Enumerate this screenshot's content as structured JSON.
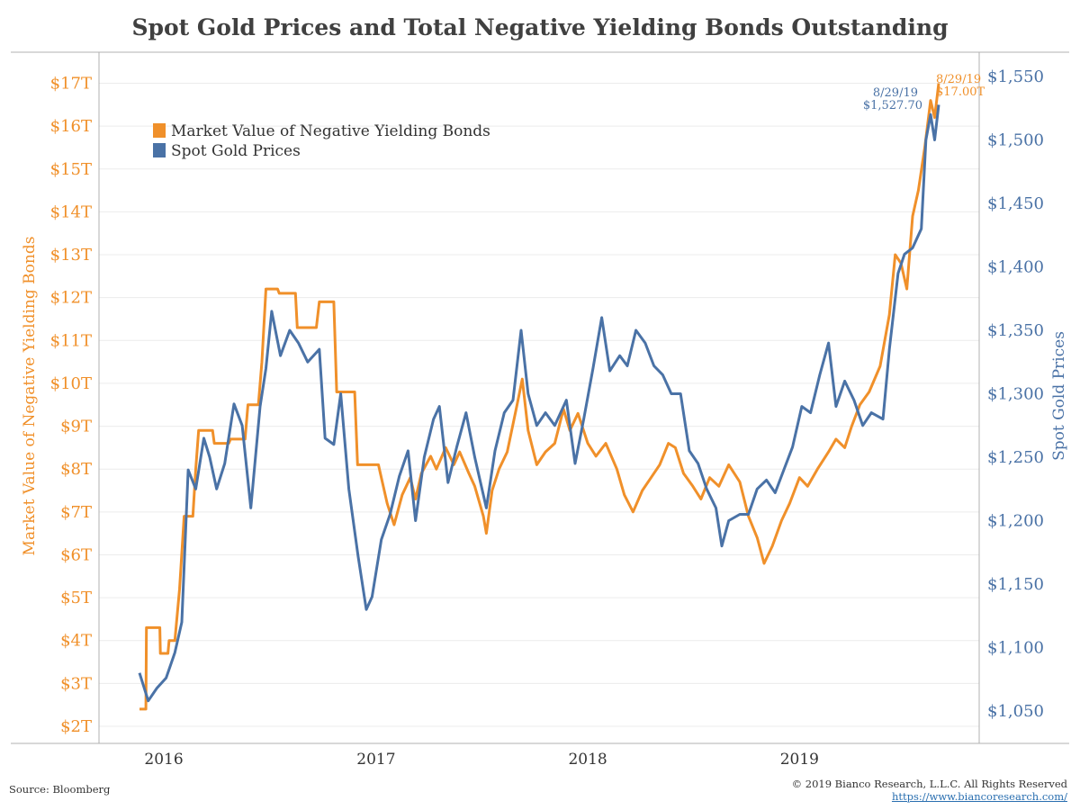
{
  "title": "Spot Gold Prices and Total Negative Yielding Bonds Outstanding",
  "footer": {
    "source": "Source: Bloomberg",
    "copyright": "© 2019 Bianco Research, L.L.C. All Rights Reserved",
    "url": "https://www.biancoresearch.com/"
  },
  "colors": {
    "bonds": "#f0902a",
    "gold": "#4a72a6",
    "axis": "#b0b0b0",
    "grid": "#ececec"
  },
  "chart_data": {
    "type": "line",
    "x_axis": {
      "ticks": [
        "2016",
        "2017",
        "2018",
        "2019"
      ],
      "range": [
        "2015-11-20",
        "2019-08-29"
      ]
    },
    "left_axis": {
      "label": "Market Value of Negative Yielding Bonds",
      "range": [
        2,
        17
      ],
      "ticks": [
        "$2T",
        "$3T",
        "$4T",
        "$5T",
        "$6T",
        "$7T",
        "$8T",
        "$9T",
        "$10T",
        "$11T",
        "$12T",
        "$13T",
        "$14T",
        "$15T",
        "$16T",
        "$17T"
      ],
      "color": "#f0902a"
    },
    "right_axis": {
      "label": "Spot Gold Prices",
      "range": [
        1050,
        1550
      ],
      "ticks": [
        "$1,050",
        "$1,100",
        "$1,150",
        "$1,200",
        "$1,250",
        "$1,300",
        "$1,350",
        "$1,400",
        "$1,450",
        "$1,500",
        "$1,550"
      ],
      "color": "#4a72a6"
    },
    "legend": {
      "placement": "top-left",
      "entries": [
        "Market Value of Negative Yielding Bonds",
        "Spot Gold Prices"
      ]
    },
    "series": [
      {
        "name": "Market Value of Negative Yielding Bonds",
        "axis": "left",
        "points": [
          [
            "2015-11-20",
            2.4
          ],
          [
            "2015-12-01",
            2.4
          ],
          [
            "2015-12-02",
            4.3
          ],
          [
            "2015-12-25",
            4.3
          ],
          [
            "2015-12-26",
            3.7
          ],
          [
            "2016-01-08",
            3.7
          ],
          [
            "2016-01-10",
            4.0
          ],
          [
            "2016-01-20",
            4.0
          ],
          [
            "2016-01-28",
            5.2
          ],
          [
            "2016-02-05",
            6.9
          ],
          [
            "2016-02-20",
            6.9
          ],
          [
            "2016-02-25",
            8.0
          ],
          [
            "2016-03-01",
            8.9
          ],
          [
            "2016-03-25",
            8.9
          ],
          [
            "2016-03-28",
            8.6
          ],
          [
            "2016-04-22",
            8.6
          ],
          [
            "2016-04-25",
            8.7
          ],
          [
            "2016-05-20",
            8.7
          ],
          [
            "2016-05-25",
            9.5
          ],
          [
            "2016-06-12",
            9.5
          ],
          [
            "2016-06-18",
            10.5
          ],
          [
            "2016-06-25",
            12.2
          ],
          [
            "2016-07-15",
            12.2
          ],
          [
            "2016-07-18",
            12.1
          ],
          [
            "2016-08-15",
            12.1
          ],
          [
            "2016-08-18",
            11.3
          ],
          [
            "2016-09-20",
            11.3
          ],
          [
            "2016-09-25",
            11.9
          ],
          [
            "2016-10-20",
            11.9
          ],
          [
            "2016-10-25",
            9.8
          ],
          [
            "2016-11-25",
            9.8
          ],
          [
            "2016-11-30",
            8.1
          ],
          [
            "2017-01-05",
            8.1
          ],
          [
            "2017-01-10",
            7.8
          ],
          [
            "2017-01-20",
            7.2
          ],
          [
            "2017-02-01",
            6.7
          ],
          [
            "2017-02-15",
            7.4
          ],
          [
            "2017-03-01",
            7.8
          ],
          [
            "2017-03-10",
            7.3
          ],
          [
            "2017-03-20",
            7.9
          ],
          [
            "2017-04-05",
            8.3
          ],
          [
            "2017-04-15",
            8.0
          ],
          [
            "2017-05-01",
            8.5
          ],
          [
            "2017-05-15",
            8.1
          ],
          [
            "2017-05-25",
            8.4
          ],
          [
            "2017-06-10",
            7.9
          ],
          [
            "2017-06-20",
            7.6
          ],
          [
            "2017-07-05",
            6.9
          ],
          [
            "2017-07-10",
            6.5
          ],
          [
            "2017-07-20",
            7.5
          ],
          [
            "2017-08-01",
            8.0
          ],
          [
            "2017-08-15",
            8.4
          ],
          [
            "2017-09-01",
            9.5
          ],
          [
            "2017-09-10",
            10.1
          ],
          [
            "2017-09-20",
            8.9
          ],
          [
            "2017-10-05",
            8.1
          ],
          [
            "2017-10-20",
            8.4
          ],
          [
            "2017-11-05",
            8.6
          ],
          [
            "2017-11-20",
            9.4
          ],
          [
            "2017-12-01",
            8.9
          ],
          [
            "2017-12-15",
            9.3
          ],
          [
            "2018-01-01",
            8.6
          ],
          [
            "2018-01-15",
            8.3
          ],
          [
            "2018-02-01",
            8.6
          ],
          [
            "2018-02-20",
            8.0
          ],
          [
            "2018-03-05",
            7.4
          ],
          [
            "2018-03-20",
            7.0
          ],
          [
            "2018-04-05",
            7.5
          ],
          [
            "2018-04-20",
            7.8
          ],
          [
            "2018-05-05",
            8.1
          ],
          [
            "2018-05-20",
            8.6
          ],
          [
            "2018-06-01",
            8.5
          ],
          [
            "2018-06-15",
            7.9
          ],
          [
            "2018-07-01",
            7.6
          ],
          [
            "2018-07-15",
            7.3
          ],
          [
            "2018-07-30",
            7.8
          ],
          [
            "2018-08-15",
            7.6
          ],
          [
            "2018-09-01",
            8.1
          ],
          [
            "2018-09-20",
            7.7
          ],
          [
            "2018-10-05",
            6.9
          ],
          [
            "2018-10-20",
            6.4
          ],
          [
            "2018-11-01",
            5.8
          ],
          [
            "2018-11-15",
            6.2
          ],
          [
            "2018-12-01",
            6.8
          ],
          [
            "2018-12-15",
            7.2
          ],
          [
            "2019-01-01",
            7.8
          ],
          [
            "2019-01-15",
            7.6
          ],
          [
            "2019-02-01",
            8.0
          ],
          [
            "2019-02-20",
            8.4
          ],
          [
            "2019-03-05",
            8.7
          ],
          [
            "2019-03-20",
            8.5
          ],
          [
            "2019-04-01",
            9.0
          ],
          [
            "2019-04-15",
            9.5
          ],
          [
            "2019-05-01",
            9.8
          ],
          [
            "2019-05-20",
            10.4
          ],
          [
            "2019-06-05",
            11.6
          ],
          [
            "2019-06-15",
            13.0
          ],
          [
            "2019-06-25",
            12.8
          ],
          [
            "2019-07-05",
            12.2
          ],
          [
            "2019-07-15",
            13.9
          ],
          [
            "2019-07-25",
            14.5
          ],
          [
            "2019-08-05",
            15.5
          ],
          [
            "2019-08-15",
            16.6
          ],
          [
            "2019-08-22",
            16.2
          ],
          [
            "2019-08-29",
            17.0
          ]
        ]
      },
      {
        "name": "Spot Gold Prices",
        "axis": "right",
        "points": [
          [
            "2015-11-20",
            1080
          ],
          [
            "2015-12-05",
            1058
          ],
          [
            "2015-12-20",
            1068
          ],
          [
            "2016-01-05",
            1076
          ],
          [
            "2016-01-20",
            1096
          ],
          [
            "2016-02-01",
            1120
          ],
          [
            "2016-02-12",
            1240
          ],
          [
            "2016-02-25",
            1225
          ],
          [
            "2016-03-10",
            1265
          ],
          [
            "2016-03-20",
            1250
          ],
          [
            "2016-04-01",
            1225
          ],
          [
            "2016-04-15",
            1245
          ],
          [
            "2016-05-01",
            1292
          ],
          [
            "2016-05-15",
            1275
          ],
          [
            "2016-05-30",
            1210
          ],
          [
            "2016-06-15",
            1290
          ],
          [
            "2016-06-25",
            1320
          ],
          [
            "2016-07-05",
            1365
          ],
          [
            "2016-07-20",
            1330
          ],
          [
            "2016-08-05",
            1350
          ],
          [
            "2016-08-20",
            1340
          ],
          [
            "2016-09-05",
            1325
          ],
          [
            "2016-09-25",
            1335
          ],
          [
            "2016-10-05",
            1265
          ],
          [
            "2016-10-20",
            1260
          ],
          [
            "2016-11-01",
            1300
          ],
          [
            "2016-11-15",
            1225
          ],
          [
            "2016-12-01",
            1172
          ],
          [
            "2016-12-15",
            1130
          ],
          [
            "2016-12-25",
            1140
          ],
          [
            "2017-01-10",
            1185
          ],
          [
            "2017-01-25",
            1205
          ],
          [
            "2017-02-10",
            1235
          ],
          [
            "2017-02-25",
            1255
          ],
          [
            "2017-03-10",
            1200
          ],
          [
            "2017-03-25",
            1250
          ],
          [
            "2017-04-10",
            1280
          ],
          [
            "2017-04-20",
            1290
          ],
          [
            "2017-05-05",
            1230
          ],
          [
            "2017-05-20",
            1258
          ],
          [
            "2017-06-05",
            1285
          ],
          [
            "2017-06-20",
            1250
          ],
          [
            "2017-07-10",
            1210
          ],
          [
            "2017-07-25",
            1255
          ],
          [
            "2017-08-10",
            1285
          ],
          [
            "2017-08-25",
            1295
          ],
          [
            "2017-09-08",
            1350
          ],
          [
            "2017-09-20",
            1300
          ],
          [
            "2017-10-05",
            1275
          ],
          [
            "2017-10-20",
            1285
          ],
          [
            "2017-11-05",
            1275
          ],
          [
            "2017-11-25",
            1295
          ],
          [
            "2017-12-10",
            1245
          ],
          [
            "2017-12-25",
            1280
          ],
          [
            "2018-01-10",
            1320
          ],
          [
            "2018-01-25",
            1360
          ],
          [
            "2018-02-08",
            1318
          ],
          [
            "2018-02-25",
            1330
          ],
          [
            "2018-03-10",
            1322
          ],
          [
            "2018-03-25",
            1350
          ],
          [
            "2018-04-10",
            1340
          ],
          [
            "2018-04-25",
            1322
          ],
          [
            "2018-05-10",
            1315
          ],
          [
            "2018-05-25",
            1300
          ],
          [
            "2018-06-10",
            1300
          ],
          [
            "2018-06-25",
            1255
          ],
          [
            "2018-07-10",
            1245
          ],
          [
            "2018-07-25",
            1225
          ],
          [
            "2018-08-10",
            1210
          ],
          [
            "2018-08-20",
            1180
          ],
          [
            "2018-09-01",
            1200
          ],
          [
            "2018-09-20",
            1205
          ],
          [
            "2018-10-05",
            1205
          ],
          [
            "2018-10-20",
            1225
          ],
          [
            "2018-11-05",
            1232
          ],
          [
            "2018-11-20",
            1222
          ],
          [
            "2018-12-05",
            1240
          ],
          [
            "2018-12-20",
            1258
          ],
          [
            "2019-01-05",
            1290
          ],
          [
            "2019-01-20",
            1285
          ],
          [
            "2019-02-05",
            1315
          ],
          [
            "2019-02-20",
            1340
          ],
          [
            "2019-03-05",
            1290
          ],
          [
            "2019-03-20",
            1310
          ],
          [
            "2019-04-05",
            1295
          ],
          [
            "2019-04-20",
            1275
          ],
          [
            "2019-05-05",
            1285
          ],
          [
            "2019-05-25",
            1280
          ],
          [
            "2019-06-05",
            1335
          ],
          [
            "2019-06-20",
            1395
          ],
          [
            "2019-07-01",
            1410
          ],
          [
            "2019-07-15",
            1415
          ],
          [
            "2019-07-30",
            1430
          ],
          [
            "2019-08-07",
            1500
          ],
          [
            "2019-08-15",
            1520
          ],
          [
            "2019-08-22",
            1500
          ],
          [
            "2019-08-29",
            1527.7
          ]
        ]
      }
    ],
    "annotations": [
      {
        "series": "Spot Gold Prices",
        "date": "8/29/19",
        "value": "$1,527.70"
      },
      {
        "series": "Market Value of Negative Yielding Bonds",
        "date": "8/29/19",
        "value": "$17.00T"
      }
    ]
  }
}
